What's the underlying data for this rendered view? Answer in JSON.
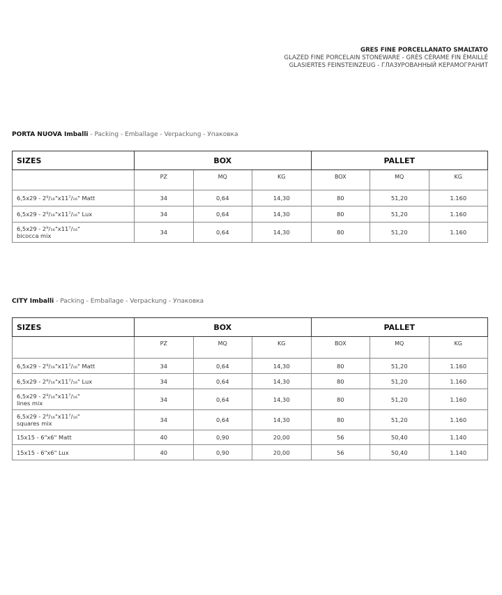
{
  "header": {
    "line1": "GRES FINE PORCELLANATO SMALTATO",
    "line2": "GLAZED FINE PORCELAIN STONEWARE - GRÈS CÉRAME FIN ÉMAILLÉ",
    "line3": "GLASIERTES FEINSTEINZEUG - ГЛАЗУРОВАННЫЙ КЕРАМОГРАНИТ"
  },
  "columns": {
    "sizes": "SIZES",
    "box": "BOX",
    "pallet": "PALLET",
    "sub": [
      "PZ",
      "MQ",
      "KG",
      "BOX",
      "MQ",
      "KG"
    ]
  },
  "sections": [
    {
      "name": "PORTA NUOVA Imballi",
      "subtitle": " - Packing - Emballage - Verpackung - Упаковка",
      "rows": [
        {
          "size": "6,5x29 - 2⁹/₁₆\"x11⁷/₁₆\" Matt",
          "size2": "",
          "v": [
            "34",
            "0,64",
            "14,30",
            "80",
            "51,20",
            "1.160"
          ]
        },
        {
          "size": "6,5x29 - 2⁹/₁₆\"x11⁷/₁₆\" Lux",
          "size2": "",
          "v": [
            "34",
            "0,64",
            "14,30",
            "80",
            "51,20",
            "1.160"
          ]
        },
        {
          "size": "6,5x29 - 2⁹/₁₆\"x11⁷/₁₆\"",
          "size2": "bicocca mix",
          "v": [
            "34",
            "0,64",
            "14,30",
            "80",
            "51,20",
            "1.160"
          ]
        }
      ]
    },
    {
      "name": "CITY Imballi",
      "subtitle": " - Packing - Emballage - Verpackung - Упаковка",
      "rows": [
        {
          "size": "6,5x29 - 2⁹/₁₆\"x11⁷/₁₆\" Matt",
          "size2": "",
          "v": [
            "34",
            "0,64",
            "14,30",
            "80",
            "51,20",
            "1.160"
          ]
        },
        {
          "size": "6,5x29 - 2⁹/₁₆\"x11⁷/₁₆\" Lux",
          "size2": "",
          "v": [
            "34",
            "0,64",
            "14,30",
            "80",
            "51,20",
            "1.160"
          ]
        },
        {
          "size": "6,5x29 - 2⁹/₁₆\"x11⁷/₁₆\"",
          "size2": "lines mix",
          "v": [
            "34",
            "0,64",
            "14,30",
            "80",
            "51,20",
            "1.160"
          ]
        },
        {
          "size": "6,5x29 - 2⁹/₁₆\"x11⁷/₁₆\"",
          "size2": "squares mix",
          "v": [
            "34",
            "0,64",
            "14,30",
            "80",
            "51,20",
            "1.160"
          ]
        },
        {
          "size": "15x15 - 6\"x6\" Matt",
          "size2": "",
          "v": [
            "40",
            "0,90",
            "20,00",
            "56",
            "50,40",
            "1.140"
          ]
        },
        {
          "size": "15x15 - 6\"x6\" Lux",
          "size2": "",
          "v": [
            "40",
            "0,90",
            "20,00",
            "56",
            "50,40",
            "1.140"
          ]
        }
      ]
    }
  ]
}
